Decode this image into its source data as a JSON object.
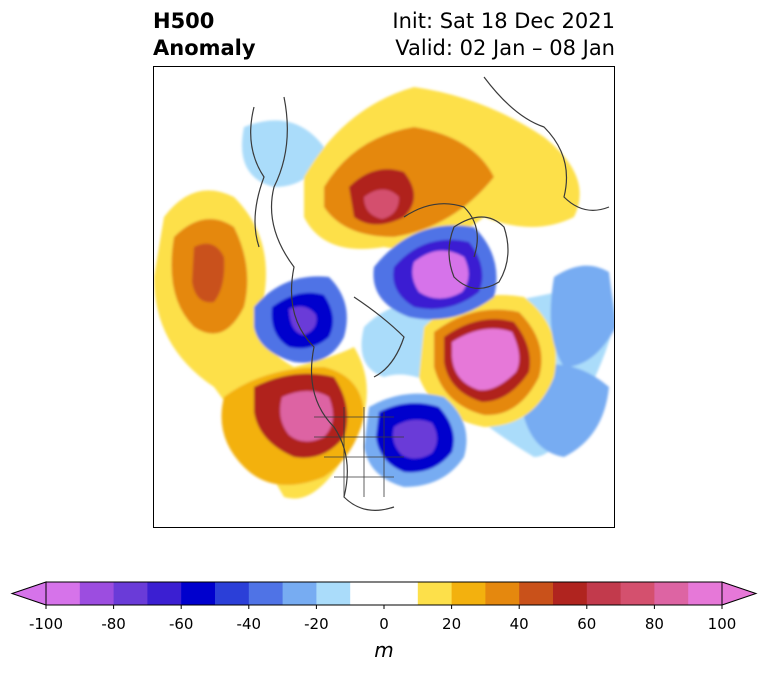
{
  "title": {
    "left_line1": "H500",
    "left_line2": "Anomaly",
    "right_line1": "Init: Sat 18 Dec 2021",
    "right_line2": "Valid: 02 Jan – 08 Jan"
  },
  "colorbar": {
    "units": "m",
    "ticks": [
      "-100",
      "-80",
      "-60",
      "-40",
      "-20",
      "0",
      "20",
      "40",
      "60",
      "80",
      "100"
    ],
    "colors": [
      "#d673ea",
      "#9c4de0",
      "#6a3bd8",
      "#3b1fd2",
      "#0000cd",
      "#2b3fd8",
      "#4f73e6",
      "#77acf2",
      "#aadcfa",
      "#ffffff",
      "#ffffff",
      "#fde04a",
      "#f3b10e",
      "#e5880e",
      "#c9511a",
      "#b0241f",
      "#c23a4c",
      "#d4506e",
      "#dd64a3",
      "#e678d8"
    ],
    "ends": {
      "low": "#d673ea",
      "high": "#e678d8"
    }
  },
  "map": {
    "description_features": [
      "coastlines",
      "country-borders",
      "us-state-borders"
    ]
  }
}
